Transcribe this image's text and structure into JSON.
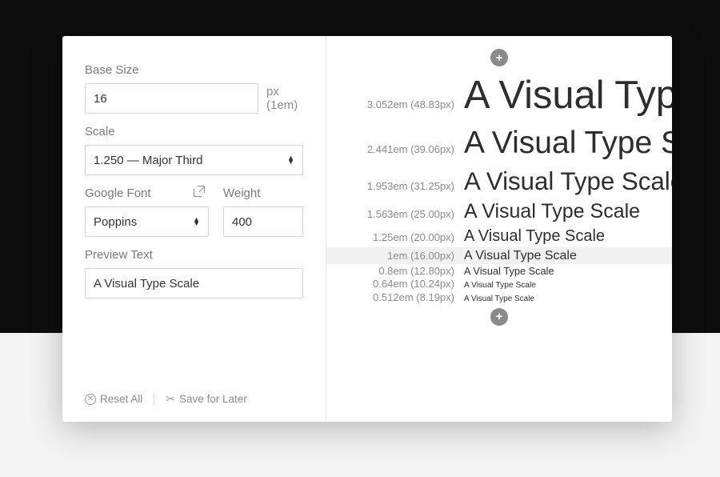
{
  "colors": {
    "background_dark": "#0d0d0d",
    "background_light": "#f3f3f3",
    "card_bg": "#ffffff",
    "border": "#d5d5d5",
    "panel_divider": "#e6e6e6",
    "label_text": "#7a7a7a",
    "muted_text": "#8a8a8a",
    "body_text": "#333333",
    "sample_text": "#2e2e2e",
    "highlight_row": "#f1f1f1",
    "plus_bg": "#8a8a8a"
  },
  "controls": {
    "base_size": {
      "label": "Base Size",
      "value": "16",
      "unit": "px (1em)"
    },
    "scale": {
      "label": "Scale",
      "value": "1.250 — Major Third"
    },
    "google_font": {
      "label": "Google Font",
      "value": "Poppins"
    },
    "weight": {
      "label": "Weight",
      "value": "400"
    },
    "preview_text": {
      "label": "Preview Text",
      "value": "A Visual Type Scale"
    }
  },
  "actions": {
    "reset": "Reset All",
    "save": "Save for Later"
  },
  "preview": {
    "sample_text": "A Visual Type Scale",
    "rows": [
      {
        "em": "3.052em",
        "px": "48.83px",
        "font_px": 48.83,
        "highlight": false
      },
      {
        "em": "2.441em",
        "px": "39.06px",
        "font_px": 39.06,
        "highlight": false
      },
      {
        "em": "1.953em",
        "px": "31.25px",
        "font_px": 31.25,
        "highlight": false
      },
      {
        "em": "1.563em",
        "px": "25.00px",
        "font_px": 25.0,
        "highlight": false
      },
      {
        "em": "1.25em",
        "px": "20.00px",
        "font_px": 20.0,
        "highlight": false
      },
      {
        "em": "1em",
        "px": "16.00px",
        "font_px": 16.0,
        "highlight": true
      },
      {
        "em": "0.8em",
        "px": "12.80px",
        "font_px": 12.8,
        "highlight": false
      },
      {
        "em": "0.64em",
        "px": "10.24px",
        "font_px": 10.24,
        "highlight": false
      },
      {
        "em": "0.512em",
        "px": "8.19px",
        "font_px": 10.0,
        "highlight": false
      }
    ]
  }
}
